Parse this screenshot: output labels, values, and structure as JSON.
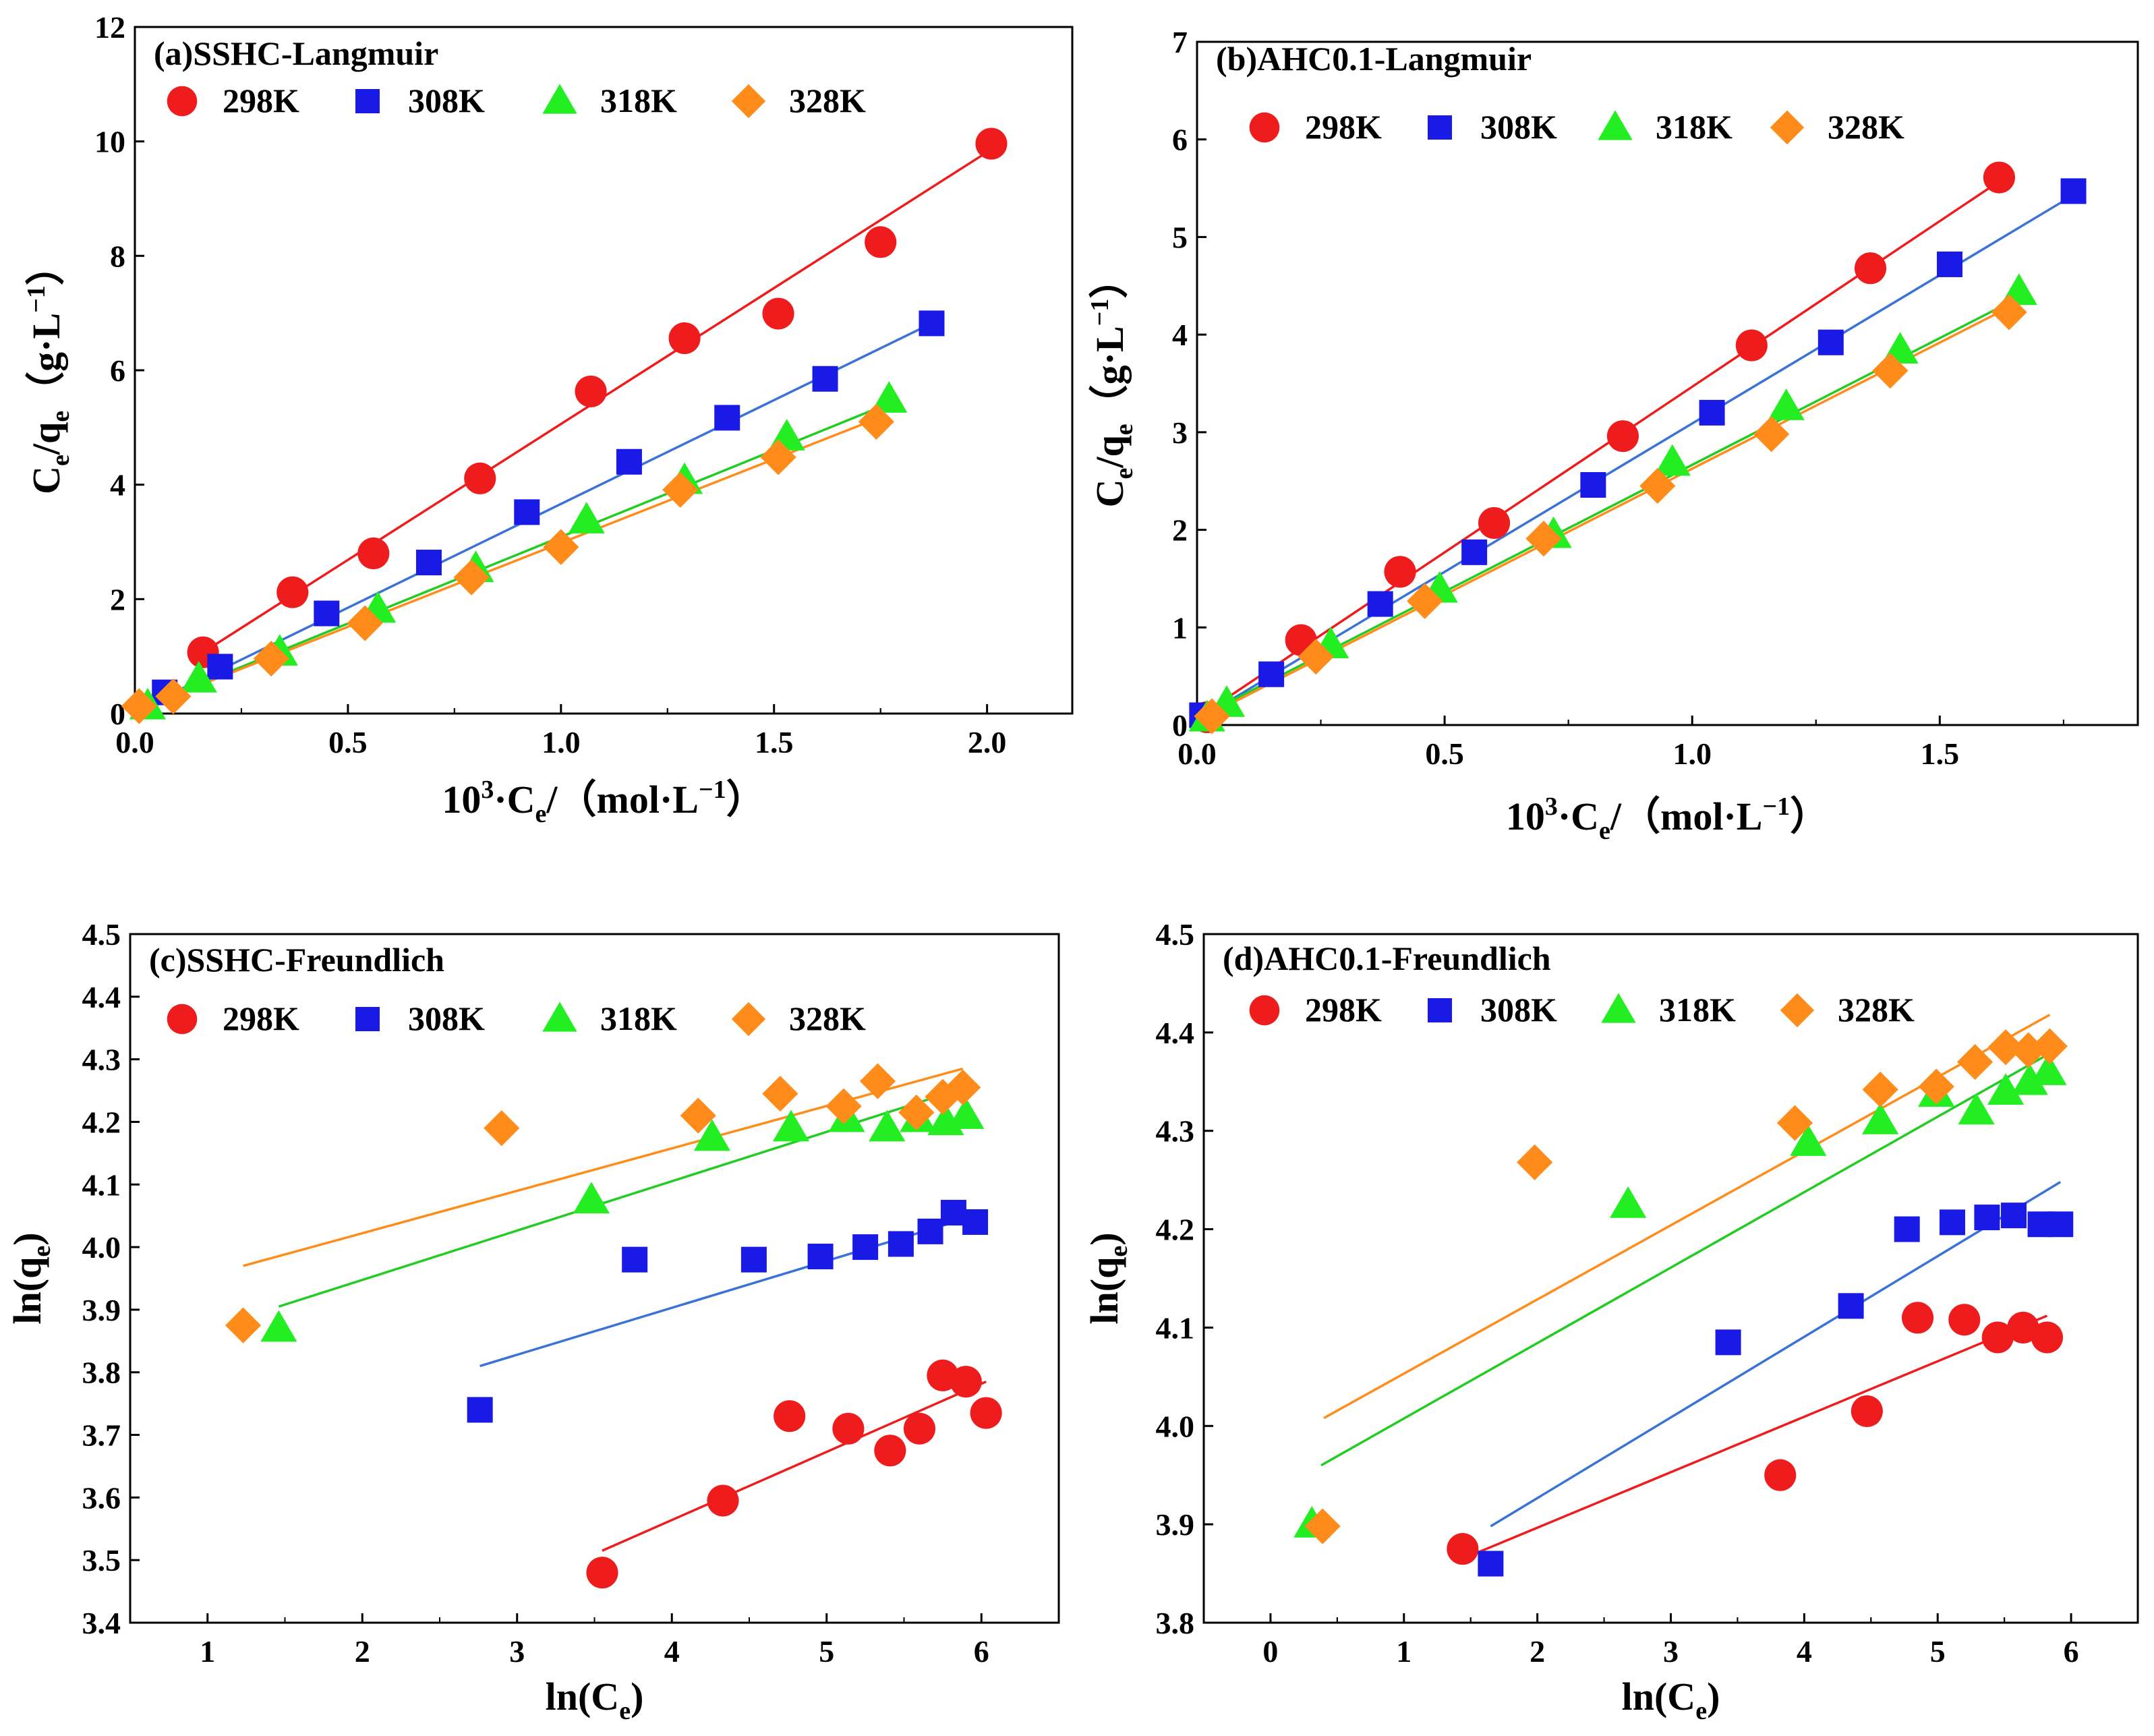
{
  "figure": {
    "series_names": [
      "298K",
      "308K",
      "318K",
      "328K"
    ],
    "colors": {
      "298K": "#ee1c1c",
      "308K": "#1a1ae6",
      "318K": "#22ee22",
      "328K": "#ff8c1a"
    },
    "line_colors": {
      "298K": "#ee1c1c",
      "308K": "#3a72d8",
      "318K": "#22cc22",
      "328K": "#ff8c1a"
    },
    "markers": {
      "298K": "circle",
      "308K": "square",
      "318K": "triangle",
      "328K": "diamond"
    }
  },
  "chart_data": [
    {
      "type": "scatter",
      "title": "(a)SSHC-Langmuir",
      "xlabel_parts": [
        "10",
        "3",
        "·C",
        "e",
        "/（mol·L",
        "−1",
        "）"
      ],
      "ylabel_parts": [
        "C",
        "e",
        "/q",
        "e",
        "（g·L",
        "−1",
        "）"
      ],
      "xlim": [
        0,
        2.2
      ],
      "ylim": [
        0,
        12
      ],
      "xticks": [
        0.0,
        0.5,
        1.0,
        1.5,
        2.0
      ],
      "xtick_labels": [
        "0.0",
        "0.5",
        "1.0",
        "1.5",
        "2.0"
      ],
      "yticks": [
        0,
        2,
        4,
        6,
        8,
        10,
        12
      ],
      "ytick_labels": [
        "0",
        "2",
        "4",
        "6",
        "8",
        "10",
        "12"
      ],
      "series": [
        {
          "name": "298K",
          "x": [
            0.16,
            0.37,
            0.56,
            0.81,
            1.07,
            1.29,
            1.51,
            1.75,
            2.01
          ],
          "y": [
            1.07,
            2.12,
            2.8,
            4.11,
            5.63,
            6.56,
            6.99,
            8.24,
            9.96
          ],
          "fit": {
            "x": [
              0.16,
              2.01
            ],
            "y": [
              1.07,
              9.86
            ]
          }
        },
        {
          "name": "308K",
          "x": [
            0.07,
            0.2,
            0.45,
            0.69,
            0.92,
            1.16,
            1.39,
            1.62,
            1.87
          ],
          "y": [
            0.37,
            0.82,
            1.75,
            2.64,
            3.52,
            4.4,
            5.17,
            5.85,
            6.82
          ],
          "fit": {
            "x": [
              0.07,
              1.87
            ],
            "y": [
              0.29,
              6.82
            ]
          }
        },
        {
          "name": "318K",
          "x": [
            0.03,
            0.15,
            0.34,
            0.57,
            0.8,
            1.06,
            1.29,
            1.53,
            1.77
          ],
          "y": [
            0.13,
            0.6,
            1.07,
            1.82,
            2.53,
            3.38,
            4.07,
            4.83,
            5.49
          ],
          "fit": {
            "x": [
              0.03,
              1.77
            ],
            "y": [
              0.15,
              5.42
            ]
          }
        },
        {
          "name": "328K",
          "x": [
            0.01,
            0.09,
            0.32,
            0.54,
            0.79,
            1.0,
            1.28,
            1.51,
            1.74
          ],
          "y": [
            0.13,
            0.3,
            0.96,
            1.58,
            2.38,
            2.91,
            3.91,
            4.48,
            5.1
          ],
          "fit": {
            "x": [
              0.01,
              1.74
            ],
            "y": [
              0.08,
              5.15
            ]
          }
        }
      ]
    },
    {
      "type": "scatter",
      "title": "(b)AHC0.1-Langmuir",
      "xlabel_parts": [
        "10",
        "3",
        "·C",
        "e",
        "/（mol·L",
        "−1",
        "）"
      ],
      "ylabel_parts": [
        "C",
        "e",
        "/q",
        "e",
        "（g·L",
        "−1",
        "）"
      ],
      "xlim": [
        0,
        1.9
      ],
      "ylim": [
        0,
        7
      ],
      "xticks": [
        0.0,
        0.5,
        1.0,
        1.5
      ],
      "xtick_labels": [
        "0.0",
        "0.5",
        "1.0",
        "1.5"
      ],
      "yticks": [
        0,
        1,
        2,
        3,
        4,
        5,
        6,
        7
      ],
      "ytick_labels": [
        "0",
        "1",
        "2",
        "3",
        "4",
        "5",
        "6",
        "7"
      ],
      "series": [
        {
          "name": "298K",
          "x": [
            0.02,
            0.21,
            0.41,
            0.6,
            0.86,
            1.12,
            1.36,
            1.62
          ],
          "y": [
            0.08,
            0.87,
            1.57,
            2.07,
            2.96,
            3.89,
            4.68,
            5.61
          ],
          "fit": {
            "x": [
              0.02,
              1.62
            ],
            "y": [
              0.14,
              5.57
            ]
          }
        },
        {
          "name": "308K",
          "x": [
            0.01,
            0.15,
            0.37,
            0.56,
            0.8,
            1.04,
            1.28,
            1.52,
            1.77
          ],
          "y": [
            0.1,
            0.52,
            1.24,
            1.77,
            2.46,
            3.2,
            3.92,
            4.72,
            5.47
          ],
          "fit": {
            "x": [
              0.01,
              1.77
            ],
            "y": [
              0.08,
              5.43
            ]
          }
        },
        {
          "name": "318K",
          "x": [
            0.02,
            0.06,
            0.27,
            0.49,
            0.72,
            0.96,
            1.19,
            1.42,
            1.66
          ],
          "y": [
            0.07,
            0.22,
            0.82,
            1.39,
            1.95,
            2.69,
            3.26,
            3.84,
            4.44
          ],
          "fit": {
            "x": [
              0.02,
              1.66
            ],
            "y": [
              0.12,
              4.38
            ]
          }
        },
        {
          "name": "328K",
          "x": [
            0.03,
            0.24,
            0.46,
            0.7,
            0.93,
            1.16,
            1.4,
            1.64
          ],
          "y": [
            0.09,
            0.7,
            1.27,
            1.91,
            2.45,
            2.98,
            3.63,
            4.23
          ],
          "fit": {
            "x": [
              0.03,
              1.64
            ],
            "y": [
              0.12,
              4.28
            ]
          }
        }
      ]
    },
    {
      "type": "scatter",
      "title": "(c)SSHC-Freundlich",
      "xlabel_parts": [
        "ln(C",
        "e",
        ")"
      ],
      "ylabel_parts": [
        "ln(q",
        "e",
        ")"
      ],
      "xlim": [
        0.5,
        6.5
      ],
      "ylim": [
        3.4,
        4.5
      ],
      "xticks": [
        1,
        2,
        3,
        4,
        5,
        6
      ],
      "xtick_labels": [
        "1",
        "2",
        "3",
        "4",
        "5",
        "6"
      ],
      "yticks": [
        3.4,
        3.5,
        3.6,
        3.7,
        3.8,
        3.9,
        4.0,
        4.1,
        4.2,
        4.3,
        4.4,
        4.5
      ],
      "ytick_labels": [
        "3.4",
        "3.5",
        "3.6",
        "3.7",
        "3.8",
        "3.9",
        "4.0",
        "4.1",
        "4.2",
        "4.3",
        "4.4",
        "4.5"
      ],
      "series": [
        {
          "name": "298K",
          "x": [
            3.55,
            4.33,
            4.76,
            5.14,
            5.41,
            5.6,
            5.75,
            5.9,
            6.03
          ],
          "y": [
            3.48,
            3.595,
            3.73,
            3.71,
            3.675,
            3.71,
            3.795,
            3.785,
            3.735
          ],
          "fit": {
            "x": [
              3.55,
              6.03
            ],
            "y": [
              3.515,
              3.785
            ]
          }
        },
        {
          "name": "308K",
          "x": [
            2.76,
            3.76,
            4.53,
            4.96,
            5.25,
            5.48,
            5.67,
            5.82,
            5.96
          ],
          "y": [
            3.74,
            3.98,
            3.98,
            3.985,
            4.0,
            4.005,
            4.025,
            4.055,
            4.04
          ],
          "fit": {
            "x": [
              2.76,
              5.96
            ],
            "y": [
              3.81,
              4.05
            ]
          }
        },
        {
          "name": "318K",
          "x": [
            1.46,
            3.48,
            4.26,
            4.77,
            5.13,
            5.39,
            5.59,
            5.77,
            5.9
          ],
          "y": [
            3.87,
            4.075,
            4.175,
            4.19,
            4.205,
            4.19,
            4.205,
            4.2,
            4.21
          ],
          "fit": {
            "x": [
              1.46,
              5.9
            ],
            "y": [
              3.905,
              4.255
            ]
          }
        },
        {
          "name": "328K",
          "x": [
            1.23,
            2.9,
            4.17,
            4.7,
            5.11,
            5.33,
            5.58,
            5.75,
            5.88
          ],
          "y": [
            3.875,
            4.19,
            4.21,
            4.245,
            4.225,
            4.265,
            4.215,
            4.24,
            4.255
          ],
          "fit": {
            "x": [
              1.23,
              5.88
            ],
            "y": [
              3.97,
              4.285
            ]
          }
        }
      ]
    },
    {
      "type": "scatter",
      "title": "(d)AHC0.1-Freundlich",
      "xlabel_parts": [
        "ln(C",
        "e",
        ")"
      ],
      "ylabel_parts": [
        "ln(q",
        "e",
        ")"
      ],
      "xlim": [
        -0.5,
        6.5
      ],
      "ylim": [
        3.8,
        4.5
      ],
      "xticks": [
        0,
        1,
        2,
        3,
        4,
        5,
        6
      ],
      "xtick_labels": [
        "0",
        "1",
        "2",
        "3",
        "4",
        "5",
        "6"
      ],
      "yticks": [
        3.8,
        3.9,
        4.0,
        4.1,
        4.2,
        4.3,
        4.4,
        4.5
      ],
      "ytick_labels": [
        "3.8",
        "3.9",
        "4.0",
        "4.1",
        "4.2",
        "4.3",
        "4.4",
        "4.5"
      ],
      "series": [
        {
          "name": "298K",
          "x": [
            1.44,
            3.82,
            4.47,
            4.85,
            5.2,
            5.45,
            5.64,
            5.82
          ],
          "y": [
            3.875,
            3.95,
            4.015,
            4.11,
            4.108,
            4.09,
            4.1,
            4.09
          ],
          "fit": {
            "x": [
              1.44,
              5.82
            ],
            "y": [
              3.865,
              4.112
            ]
          }
        },
        {
          "name": "308K",
          "x": [
            1.65,
            3.43,
            4.35,
            4.77,
            5.11,
            5.37,
            5.57,
            5.77,
            5.92
          ],
          "y": [
            3.86,
            4.085,
            4.122,
            4.2,
            4.207,
            4.212,
            4.214,
            4.205,
            4.205
          ],
          "fit": {
            "x": [
              1.65,
              5.92
            ],
            "y": [
              3.898,
              4.248
            ]
          }
        },
        {
          "name": "318K",
          "x": [
            0.31,
            2.68,
            4.03,
            4.57,
            4.99,
            5.29,
            5.51,
            5.69,
            5.83
          ],
          "y": [
            3.9,
            4.225,
            4.288,
            4.31,
            4.338,
            4.32,
            4.34,
            4.35,
            4.36
          ],
          "fit": {
            "x": [
              0.38,
              5.83
            ],
            "y": [
              3.96,
              4.378
            ]
          }
        },
        {
          "name": "328K",
          "x": [
            0.39,
            1.98,
            3.93,
            4.57,
            4.99,
            5.28,
            5.51,
            5.68,
            5.84
          ],
          "y": [
            3.898,
            4.268,
            4.308,
            4.342,
            4.345,
            4.37,
            4.385,
            4.382,
            4.386
          ],
          "fit": {
            "x": [
              0.4,
              5.84
            ],
            "y": [
              4.008,
              4.418
            ]
          }
        }
      ]
    }
  ]
}
